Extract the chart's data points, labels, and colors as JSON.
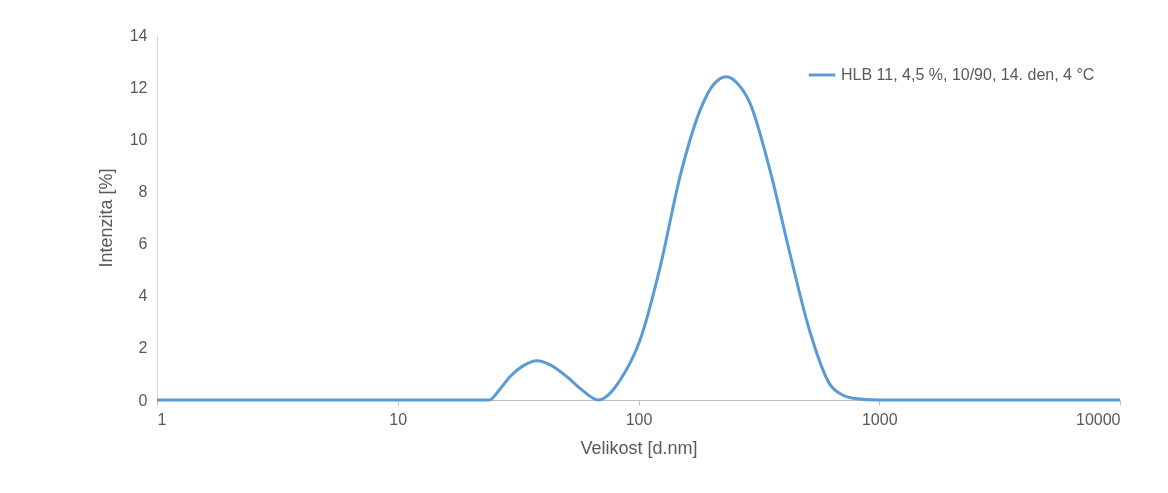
{
  "chart_data": {
    "type": "line",
    "xlabel": "Velikost [d.nm]",
    "ylabel": "Intenzita [%]",
    "log": "x",
    "xlim": [
      1,
      10000
    ],
    "xticks": [
      1,
      10,
      100,
      1000,
      10000
    ],
    "ylim": [
      0,
      14
    ],
    "yticks": [
      0,
      2,
      4,
      6,
      8,
      10,
      12,
      14
    ],
    "grid": false,
    "legend": "top right",
    "marker": "none",
    "line_style": "solid",
    "series": [
      {
        "name": "HLB 11, 4,5 %, 10/90, 14. den, 4 °C",
        "color": "#5b9bd5",
        "x": [
          1,
          10,
          20,
          24,
          26.5,
          29.3,
          33,
          37.9,
          43,
          50.3,
          58,
          68,
          75,
          84,
          101.5,
          123,
          149,
          180,
          205,
          232,
          260,
          290,
          352,
          426,
          516,
          624,
          700,
          778,
          1000,
          10000
        ],
        "values": [
          0,
          0,
          0,
          0,
          0.4,
          0.9,
          1.3,
          1.51,
          1.35,
          0.9,
          0.4,
          0,
          0.2,
          0.77,
          2.3,
          5.1,
          8.6,
          11.1,
          12.1,
          12.4,
          12.1,
          11.4,
          8.8,
          5.6,
          2.6,
          0.6,
          0.2,
          0.07,
          0,
          0
        ]
      }
    ]
  }
}
